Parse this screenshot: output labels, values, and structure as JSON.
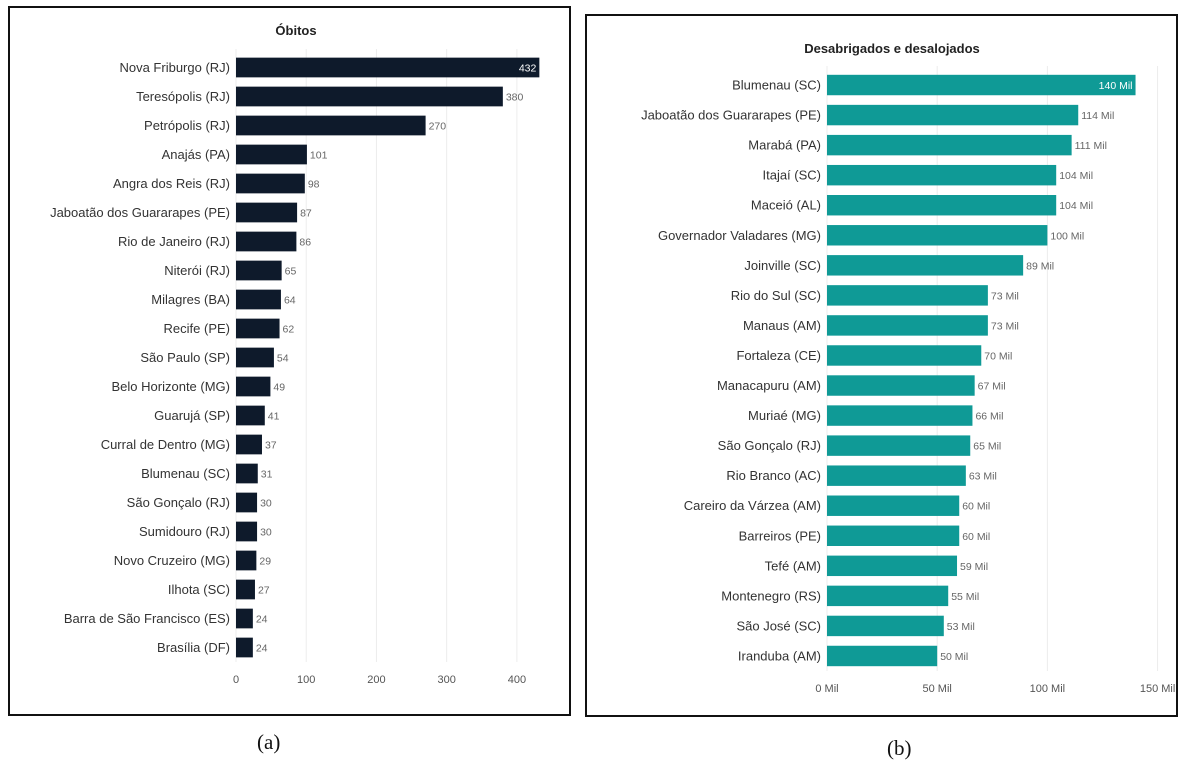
{
  "chart_data": [
    {
      "type": "bar",
      "orientation": "horizontal",
      "title": "Óbitos",
      "bar_color": "#0e1a2b",
      "categories": [
        "Nova Friburgo (RJ)",
        "Teresópolis (RJ)",
        "Petrópolis (RJ)",
        "Anajás (PA)",
        "Angra dos Reis (RJ)",
        "Jaboatão dos Guararapes (PE)",
        "Rio de Janeiro (RJ)",
        "Niterói (RJ)",
        "Milagres (BA)",
        "Recife (PE)",
        "São Paulo (SP)",
        "Belo Horizonte (MG)",
        "Guarujá (SP)",
        "Curral de Dentro (MG)",
        "Blumenau (SC)",
        "São Gonçalo (RJ)",
        "Sumidouro (RJ)",
        "Novo Cruzeiro (MG)",
        "Ilhota (SC)",
        "Barra de São Francisco (ES)",
        "Brasília (DF)"
      ],
      "values": [
        432,
        380,
        270,
        101,
        98,
        87,
        86,
        65,
        64,
        62,
        54,
        49,
        41,
        37,
        31,
        30,
        30,
        29,
        27,
        24,
        24
      ],
      "value_labels": [
        "432",
        "380",
        "270",
        "101",
        "98",
        "87",
        "86",
        "65",
        "64",
        "62",
        "54",
        "49",
        "41",
        "37",
        "31",
        "30",
        "30",
        "29",
        "27",
        "24",
        "24"
      ],
      "xlim": [
        0,
        450
      ],
      "xticks": [
        0,
        100,
        200,
        300,
        400
      ],
      "xtick_labels": [
        "0",
        "100",
        "200",
        "300",
        "400"
      ],
      "grid": true
    },
    {
      "type": "bar",
      "orientation": "horizontal",
      "title": "Desabrigados e desalojados",
      "bar_color": "#0f9a96",
      "categories": [
        "Blumenau (SC)",
        "Jaboatão dos Guararapes (PE)",
        "Marabá (PA)",
        "Itajaí (SC)",
        "Maceió (AL)",
        "Governador Valadares (MG)",
        "Joinville (SC)",
        "Rio do Sul (SC)",
        "Manaus (AM)",
        "Fortaleza (CE)",
        "Manacapuru (AM)",
        "Muriaé (MG)",
        "São Gonçalo (RJ)",
        "Rio Branco (AC)",
        "Careiro da Várzea (AM)",
        "Barreiros (PE)",
        "Tefé (AM)",
        "Montenegro (RS)",
        "São José (SC)",
        "Iranduba (AM)"
      ],
      "values": [
        140,
        114,
        111,
        104,
        104,
        100,
        89,
        73,
        73,
        70,
        67,
        66,
        65,
        63,
        60,
        60,
        59,
        55,
        53,
        50
      ],
      "value_labels": [
        "140 Mil",
        "114 Mil",
        "111 Mil",
        "104 Mil",
        "104 Mil",
        "100 Mil",
        "89 Mil",
        "73 Mil",
        "73 Mil",
        "70 Mil",
        "67 Mil",
        "66 Mil",
        "65 Mil",
        "63 Mil",
        "60 Mil",
        "60 Mil",
        "59 Mil",
        "55 Mil",
        "53 Mil",
        "50 Mil"
      ],
      "xlim": [
        0,
        157
      ],
      "xticks": [
        0,
        50,
        100,
        150
      ],
      "xtick_labels": [
        "0 Mil",
        "50 Mil",
        "100 Mil",
        "150 Mil"
      ],
      "grid": true
    }
  ],
  "captions": [
    "(a)",
    "(b)"
  ]
}
